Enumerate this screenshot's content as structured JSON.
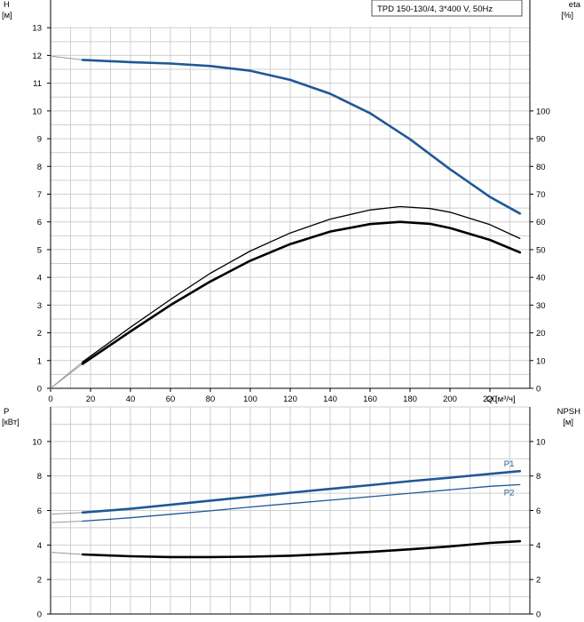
{
  "chart_data": [
    {
      "type": "line",
      "title_box": "TPD 150-130/4, 3*400 V, 50Hz",
      "left_axis": {
        "label": "H",
        "unit": "[м]",
        "ylim": [
          0,
          14
        ],
        "ticks": [
          0,
          1,
          2,
          3,
          4,
          5,
          6,
          7,
          8,
          9,
          10,
          11,
          12,
          13
        ]
      },
      "right_axis": {
        "label": "eta",
        "unit": "[%]",
        "ylim": [
          0,
          140
        ],
        "ticks": [
          0,
          10,
          20,
          30,
          40,
          50,
          60,
          70,
          80,
          90,
          100
        ]
      },
      "x_axis": {
        "label": "Q [м³/ч]",
        "xlim": [
          0,
          240
        ],
        "ticks": [
          0,
          20,
          40,
          60,
          80,
          100,
          120,
          140,
          160,
          180,
          200,
          220
        ]
      },
      "grid": true,
      "series": [
        {
          "axis": "left",
          "color": "#1f5896",
          "style": "thick",
          "extrapolated_points": [
            [
              0,
              11.98
            ],
            [
              16,
              11.84
            ]
          ],
          "points": [
            [
              16,
              11.84
            ],
            [
              40,
              11.76
            ],
            [
              60,
              11.71
            ],
            [
              80,
              11.62
            ],
            [
              100,
              11.45
            ],
            [
              120,
              11.12
            ],
            [
              140,
              10.62
            ],
            [
              160,
              9.92
            ],
            [
              180,
              8.98
            ],
            [
              200,
              7.9
            ],
            [
              220,
              6.9
            ],
            [
              235,
              6.3
            ]
          ]
        },
        {
          "axis": "right",
          "color": "#000000",
          "style": "thin",
          "extrapolated_points": [
            [
              0,
              0
            ],
            [
              16,
              9.5
            ]
          ],
          "points": [
            [
              16,
              9.5
            ],
            [
              40,
              22
            ],
            [
              60,
              32
            ],
            [
              80,
              41.5
            ],
            [
              100,
              49.5
            ],
            [
              120,
              56
            ],
            [
              140,
              61
            ],
            [
              160,
              64.3
            ],
            [
              175,
              65.5
            ],
            [
              190,
              64.8
            ],
            [
              200,
              63.5
            ],
            [
              220,
              59
            ],
            [
              235,
              54
            ]
          ]
        },
        {
          "axis": "right",
          "color": "#000000",
          "style": "thick",
          "extrapolated_points": [
            [
              0,
              0
            ],
            [
              16,
              8.8
            ]
          ],
          "points": [
            [
              16,
              8.8
            ],
            [
              40,
              20.5
            ],
            [
              60,
              30
            ],
            [
              80,
              38.5
            ],
            [
              100,
              46
            ],
            [
              120,
              52
            ],
            [
              140,
              56.5
            ],
            [
              160,
              59.2
            ],
            [
              175,
              60
            ],
            [
              190,
              59.3
            ],
            [
              200,
              57.8
            ],
            [
              220,
              53.5
            ],
            [
              235,
              49
            ]
          ]
        }
      ]
    },
    {
      "type": "line",
      "left_axis": {
        "label": "P",
        "unit": "[кВт]",
        "ylim": [
          0,
          12
        ],
        "ticks": [
          0,
          2,
          4,
          6,
          8,
          10
        ]
      },
      "right_axis": {
        "label": "NPSH",
        "unit": "[м]",
        "ylim": [
          0,
          12
        ],
        "ticks": [
          0,
          2,
          4,
          6,
          8,
          10
        ]
      },
      "x_axis": {
        "xlim": [
          0,
          240
        ]
      },
      "grid": true,
      "series": [
        {
          "name": "P1",
          "axis": "left",
          "color": "#1f5896",
          "style": "thick",
          "extrapolated_points": [
            [
              0,
              5.78
            ],
            [
              16,
              5.88
            ]
          ],
          "points": [
            [
              16,
              5.88
            ],
            [
              40,
              6.1
            ],
            [
              60,
              6.33
            ],
            [
              80,
              6.57
            ],
            [
              100,
              6.8
            ],
            [
              120,
              7.03
            ],
            [
              140,
              7.25
            ],
            [
              160,
              7.47
            ],
            [
              180,
              7.7
            ],
            [
              200,
              7.9
            ],
            [
              220,
              8.12
            ],
            [
              235,
              8.28
            ]
          ]
        },
        {
          "name": "P2",
          "axis": "left",
          "color": "#1f5896",
          "style": "thin",
          "extrapolated_points": [
            [
              0,
              5.3
            ],
            [
              16,
              5.38
            ]
          ],
          "points": [
            [
              16,
              5.38
            ],
            [
              40,
              5.58
            ],
            [
              60,
              5.78
            ],
            [
              80,
              5.98
            ],
            [
              100,
              6.2
            ],
            [
              120,
              6.4
            ],
            [
              140,
              6.6
            ],
            [
              160,
              6.8
            ],
            [
              180,
              7.0
            ],
            [
              200,
              7.2
            ],
            [
              220,
              7.4
            ],
            [
              235,
              7.5
            ]
          ]
        },
        {
          "axis": "right",
          "color": "#000000",
          "style": "thick",
          "extrapolated_points": [
            [
              0,
              3.58
            ],
            [
              16,
              3.45
            ]
          ],
          "points": [
            [
              16,
              3.45
            ],
            [
              40,
              3.35
            ],
            [
              60,
              3.3
            ],
            [
              80,
              3.3
            ],
            [
              100,
              3.32
            ],
            [
              120,
              3.38
            ],
            [
              140,
              3.48
            ],
            [
              160,
              3.6
            ],
            [
              180,
              3.75
            ],
            [
              200,
              3.92
            ],
            [
              220,
              4.12
            ],
            [
              235,
              4.22
            ]
          ]
        }
      ]
    }
  ]
}
